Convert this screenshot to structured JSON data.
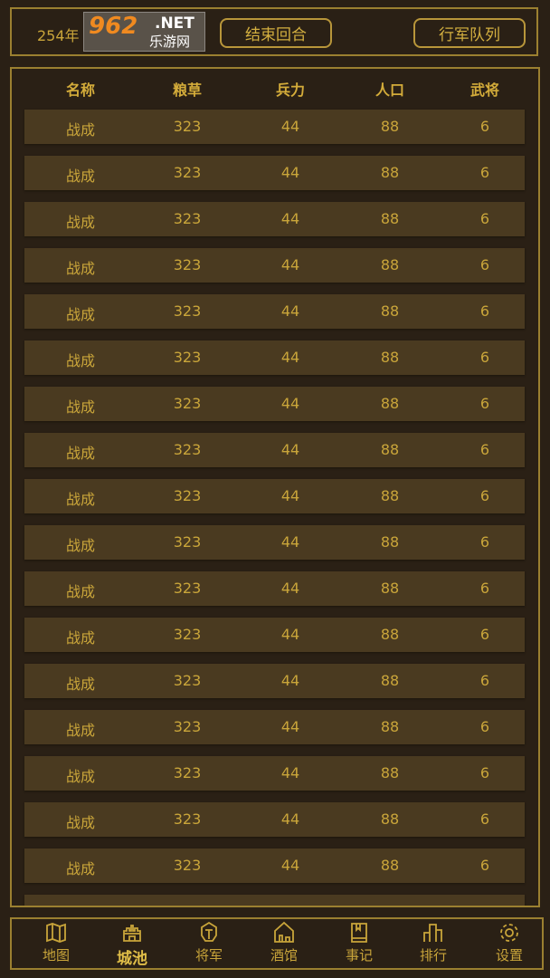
{
  "topbar": {
    "year": "254年",
    "end_turn": "结束回合",
    "march_queue": "行军队列"
  },
  "table": {
    "headers": [
      "名称",
      "粮草",
      "兵力",
      "人口",
      "武将"
    ],
    "rows": [
      [
        "战成",
        "323",
        "44",
        "88",
        "6"
      ],
      [
        "战成",
        "323",
        "44",
        "88",
        "6"
      ],
      [
        "战成",
        "323",
        "44",
        "88",
        "6"
      ],
      [
        "战成",
        "323",
        "44",
        "88",
        "6"
      ],
      [
        "战成",
        "323",
        "44",
        "88",
        "6"
      ],
      [
        "战成",
        "323",
        "44",
        "88",
        "6"
      ],
      [
        "战成",
        "323",
        "44",
        "88",
        "6"
      ],
      [
        "战成",
        "323",
        "44",
        "88",
        "6"
      ],
      [
        "战成",
        "323",
        "44",
        "88",
        "6"
      ],
      [
        "战成",
        "323",
        "44",
        "88",
        "6"
      ],
      [
        "战成",
        "323",
        "44",
        "88",
        "6"
      ],
      [
        "战成",
        "323",
        "44",
        "88",
        "6"
      ],
      [
        "战成",
        "323",
        "44",
        "88",
        "6"
      ],
      [
        "战成",
        "323",
        "44",
        "88",
        "6"
      ],
      [
        "战成",
        "323",
        "44",
        "88",
        "6"
      ],
      [
        "战成",
        "323",
        "44",
        "88",
        "6"
      ],
      [
        "战成",
        "323",
        "44",
        "88",
        "6"
      ]
    ]
  },
  "nav": {
    "active": 1,
    "tabs": [
      {
        "label": "地图",
        "icon": "map-icon"
      },
      {
        "label": "城池",
        "icon": "castle-icon"
      },
      {
        "label": "将军",
        "icon": "helmet-icon"
      },
      {
        "label": "酒馆",
        "icon": "tavern-icon"
      },
      {
        "label": "事记",
        "icon": "book-icon"
      },
      {
        "label": "排行",
        "icon": "ranking-icon"
      },
      {
        "label": "设置",
        "icon": "gear-icon"
      }
    ]
  },
  "watermark": {
    "brand": "962",
    "suffix": ".NET",
    "name": "乐游网"
  },
  "colors": {
    "background": "#2a2015",
    "border": "#9b8030",
    "text": "#c9a53a",
    "row": "#4a3a20"
  }
}
